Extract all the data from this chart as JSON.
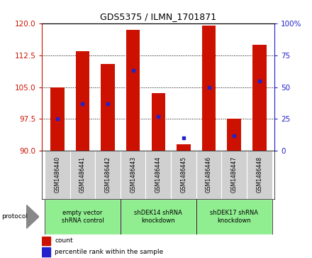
{
  "title": "GDS5375 / ILMN_1701871",
  "samples": [
    "GSM1486440",
    "GSM1486441",
    "GSM1486442",
    "GSM1486443",
    "GSM1486444",
    "GSM1486445",
    "GSM1486446",
    "GSM1486447",
    "GSM1486448"
  ],
  "counts": [
    105.0,
    113.5,
    110.5,
    118.5,
    103.5,
    91.5,
    119.5,
    97.5,
    115.0
  ],
  "percentile_ranks": [
    25,
    37,
    37,
    63,
    27,
    10,
    50,
    12,
    55
  ],
  "ylim_left": [
    90,
    120
  ],
  "ylim_right": [
    0,
    100
  ],
  "yticks_left": [
    90,
    97.5,
    105,
    112.5,
    120
  ],
  "yticks_right": [
    0,
    25,
    50,
    75,
    100
  ],
  "group_boundaries": [
    [
      0,
      3,
      "empty vector\nshRNA control"
    ],
    [
      3,
      6,
      "shDEK14 shRNA\nknockdown"
    ],
    [
      6,
      9,
      "shDEK17 shRNA\nknockdown"
    ]
  ],
  "bar_color": "#cc1100",
  "dot_color": "#2222cc",
  "bar_width": 0.55,
  "protocol_label": "protocol",
  "legend_count_label": "count",
  "legend_percentile_label": "percentile rank within the sample",
  "left_axis_color": "#cc1100",
  "right_axis_color": "#2222cc",
  "tick_bg_color": "#d0d0d0",
  "group_bg_color": "#90ee90",
  "plot_border_color": "#000000"
}
